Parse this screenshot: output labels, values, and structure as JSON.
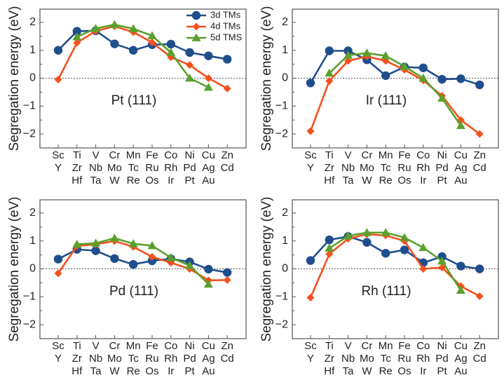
{
  "figure": {
    "ylabel": "Segregation energy (eV)",
    "legend": {
      "placement": "top-right (first panel only)",
      "entries": [
        {
          "name": "3d TMs",
          "marker": "circle",
          "color": "#1f4e8c"
        },
        {
          "name": "4d TMs",
          "marker": "diamond",
          "color": "#f4511e"
        },
        {
          "name": "5d TMS",
          "marker": "triangle",
          "color": "#5aa02c"
        }
      ]
    }
  },
  "chart_data": [
    {
      "type": "line",
      "title": "Pt (111)",
      "xlabel": "",
      "ylabel": "Segregation energy (eV)",
      "ylim": [
        -2.5,
        2.5
      ],
      "yticks": [
        -2,
        -1,
        0,
        1,
        2
      ],
      "ytick_labels": [
        "−2",
        "−1",
        "0",
        "1",
        "2"
      ],
      "categories": [
        [
          "Sc",
          "Y",
          ""
        ],
        [
          "Ti",
          "Zr",
          "Hf"
        ],
        [
          "V",
          "Nb",
          "Ta"
        ],
        [
          "Cr",
          "Mo",
          "W"
        ],
        [
          "Mn",
          "Tc",
          "Re"
        ],
        [
          "Fe",
          "Ru",
          "Os"
        ],
        [
          "Co",
          "Rh",
          "Ir"
        ],
        [
          "Ni",
          "Pd",
          "Pt"
        ],
        [
          "Cu",
          "Ag",
          "Au"
        ],
        [
          "Zn",
          "Cd",
          ""
        ]
      ],
      "zero_line": true,
      "show_legend": true,
      "series": [
        {
          "name": "3d TMs",
          "values": [
            1.0,
            1.68,
            1.7,
            1.23,
            1.0,
            1.2,
            1.22,
            0.92,
            0.8,
            0.68
          ]
        },
        {
          "name": "4d TMs",
          "values": [
            -0.05,
            1.27,
            1.69,
            1.86,
            1.65,
            1.28,
            0.75,
            0.47,
            0.0,
            -0.37
          ]
        },
        {
          "name": "5d TMS",
          "values": [
            null,
            1.48,
            1.78,
            1.92,
            1.77,
            1.52,
            0.92,
            0.0,
            -0.33,
            null
          ]
        }
      ]
    },
    {
      "type": "line",
      "title": "Ir (111)",
      "xlabel": "",
      "ylabel": "Segregation energy (eV)",
      "ylim": [
        -2.5,
        2.5
      ],
      "yticks": [
        -2,
        -1,
        0,
        1,
        2
      ],
      "ytick_labels": [
        "−2",
        "−1",
        "0",
        "1",
        "2"
      ],
      "categories": [
        [
          "Sc",
          "Y",
          ""
        ],
        [
          "Ti",
          "Zr",
          "Hf"
        ],
        [
          "V",
          "Nb",
          "Ta"
        ],
        [
          "Cr",
          "Mo",
          "W"
        ],
        [
          "Mn",
          "Tc",
          "Re"
        ],
        [
          "Fe",
          "Ru",
          "Os"
        ],
        [
          "Co",
          "Rh",
          "Ir"
        ],
        [
          "Ni",
          "Pd",
          "Pt"
        ],
        [
          "Cu",
          "Ag",
          "Au"
        ],
        [
          "Zn",
          "Cd",
          ""
        ]
      ],
      "zero_line": true,
      "show_legend": false,
      "series": [
        {
          "name": "3d TMs",
          "values": [
            -0.17,
            0.98,
            0.98,
            0.66,
            0.09,
            0.4,
            0.37,
            -0.04,
            -0.02,
            -0.24
          ]
        },
        {
          "name": "4d TMs",
          "values": [
            -1.9,
            -0.1,
            0.62,
            0.78,
            0.62,
            0.3,
            -0.08,
            -0.63,
            -1.5,
            -2.0
          ]
        },
        {
          "name": "5d TMS",
          "values": [
            null,
            0.18,
            0.82,
            0.9,
            0.8,
            0.42,
            0.0,
            -0.72,
            -1.7,
            null
          ]
        }
      ]
    },
    {
      "type": "line",
      "title": "Pd (111)",
      "xlabel": "",
      "ylabel": "Segregation energy (eV)",
      "ylim": [
        -2.5,
        2.5
      ],
      "yticks": [
        -2,
        -1,
        0,
        1,
        2
      ],
      "ytick_labels": [
        "−2",
        "−1",
        "0",
        "1",
        "2"
      ],
      "categories": [
        [
          "Sc",
          "Y",
          ""
        ],
        [
          "Ti",
          "Zr",
          "Hf"
        ],
        [
          "V",
          "Nb",
          "Ta"
        ],
        [
          "Cr",
          "Mo",
          "W"
        ],
        [
          "Mn",
          "Tc",
          "Re"
        ],
        [
          "Fe",
          "Ru",
          "Os"
        ],
        [
          "Co",
          "Rh",
          "Ir"
        ],
        [
          "Ni",
          "Pd",
          "Pt"
        ],
        [
          "Cu",
          "Ag",
          "Au"
        ],
        [
          "Zn",
          "Cd",
          ""
        ]
      ],
      "zero_line": true,
      "show_legend": false,
      "series": [
        {
          "name": "3d TMs",
          "values": [
            0.35,
            0.7,
            0.65,
            0.37,
            0.16,
            0.29,
            0.36,
            0.25,
            -0.01,
            -0.13
          ]
        },
        {
          "name": "4d TMs",
          "values": [
            -0.16,
            0.82,
            0.88,
            1.0,
            0.79,
            0.43,
            0.22,
            0.0,
            -0.41,
            -0.4
          ]
        },
        {
          "name": "5d TMS",
          "values": [
            null,
            0.88,
            0.92,
            1.1,
            0.9,
            0.83,
            0.4,
            0.12,
            -0.55,
            null
          ]
        }
      ]
    },
    {
      "type": "line",
      "title": "Rh (111)",
      "xlabel": "",
      "ylabel": "Segregation energy (eV)",
      "ylim": [
        -2.5,
        2.5
      ],
      "yticks": [
        -2,
        -1,
        0,
        1,
        2
      ],
      "ytick_labels": [
        "−2",
        "−1",
        "0",
        "1",
        "2"
      ],
      "categories": [
        [
          "Sc",
          "Y",
          ""
        ],
        [
          "Ti",
          "Zr",
          "Hf"
        ],
        [
          "V",
          "Nb",
          "Ta"
        ],
        [
          "Cr",
          "Mo",
          "W"
        ],
        [
          "Mn",
          "Tc",
          "Re"
        ],
        [
          "Fe",
          "Ru",
          "Os"
        ],
        [
          "Co",
          "Rh",
          "Ir"
        ],
        [
          "Ni",
          "Pd",
          "Pt"
        ],
        [
          "Cu",
          "Ag",
          "Au"
        ],
        [
          "Zn",
          "Cd",
          ""
        ]
      ],
      "zero_line": true,
      "show_legend": false,
      "series": [
        {
          "name": "3d TMs",
          "values": [
            0.3,
            1.04,
            1.16,
            0.95,
            0.56,
            0.68,
            0.22,
            0.44,
            0.1,
            0.0
          ]
        },
        {
          "name": "4d TMs",
          "values": [
            -1.03,
            0.53,
            1.08,
            1.24,
            1.2,
            1.0,
            0.0,
            0.05,
            -0.62,
            -0.98
          ]
        },
        {
          "name": "5d TMS",
          "values": [
            null,
            0.74,
            1.18,
            1.3,
            1.3,
            1.12,
            0.76,
            0.28,
            -0.77,
            null
          ]
        }
      ]
    }
  ]
}
